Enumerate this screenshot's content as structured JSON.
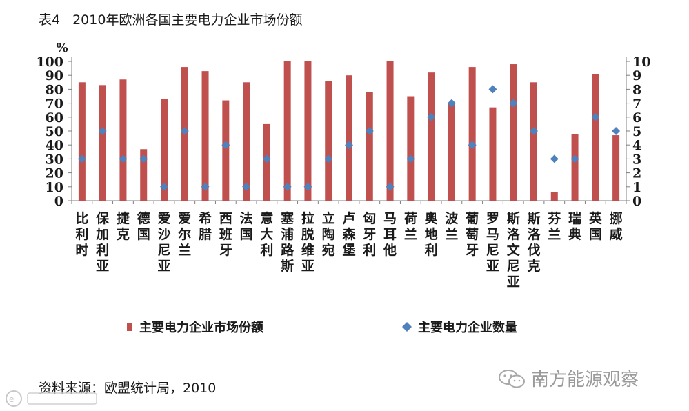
{
  "header": {
    "table_label": "表4",
    "title_text": "2010年欧洲各国主要电力企业市场份额"
  },
  "footer": {
    "source": "资料来源：欧盟统计局，2010",
    "brand": "南方能源观察"
  },
  "colors": {
    "bar": "#c0504d",
    "diamond": "#4f81bd",
    "axis": "#7f7f7f"
  },
  "chart_data": {
    "type": "bar",
    "unit_label": "%",
    "categories": [
      "比利时",
      "保加利亚",
      "捷克",
      "德国",
      "爱沙尼亚",
      "爱尔兰",
      "希腊",
      "西班牙",
      "法国",
      "意大利",
      "塞浦路斯",
      "拉脱维亚",
      "立陶宛",
      "卢森堡",
      "匈牙利",
      "马耳他",
      "荷兰",
      "奥地利",
      "波兰",
      "葡萄牙",
      "罗马尼亚",
      "斯洛文尼亚",
      "斯洛伐克",
      "芬兰",
      "瑞典",
      "英国",
      "挪威"
    ],
    "series": [
      {
        "name": "主要电力企业市场份额",
        "kind": "bar",
        "axis": "left",
        "values": [
          85,
          83,
          87,
          37,
          73,
          96,
          93,
          72,
          85,
          55,
          100,
          100,
          86,
          90,
          78,
          100,
          75,
          92,
          70,
          96,
          67,
          98,
          85,
          6,
          48,
          91,
          47
        ]
      },
      {
        "name": "主要电力企业数量",
        "kind": "scatter",
        "axis": "right",
        "values": [
          3,
          5,
          3,
          3,
          1,
          5,
          1,
          4,
          1,
          3,
          1,
          1,
          3,
          4,
          5,
          1,
          3,
          6,
          7,
          4,
          8,
          7,
          5,
          3,
          3,
          6,
          5
        ]
      }
    ],
    "y_left": {
      "min": 0,
      "max": 100,
      "step": 10,
      "ticks": [
        "0",
        "10",
        "20",
        "30",
        "40",
        "50",
        "60",
        "70",
        "80",
        "90",
        "100"
      ]
    },
    "y_right": {
      "min": 0,
      "max": 10,
      "step": 1,
      "ticks": [
        "0",
        "1",
        "2",
        "3",
        "4",
        "5",
        "6",
        "7",
        "8",
        "9",
        "10"
      ]
    },
    "legend_position": "bottom",
    "grid": false
  }
}
